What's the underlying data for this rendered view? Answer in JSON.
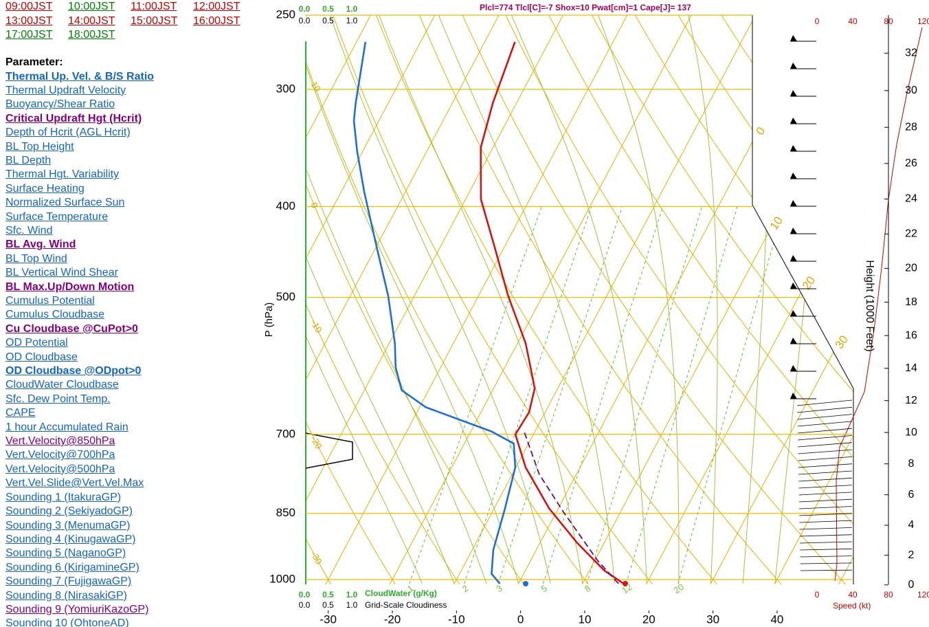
{
  "time_links": [
    {
      "text": "09:00JST",
      "color": "#c00000"
    },
    {
      "text": "10:00JST",
      "color": "#008000"
    },
    {
      "text": "11:00JST",
      "color": "#c00000"
    },
    {
      "text": "12:00JST",
      "color": "#c00000"
    },
    {
      "text": "13:00JST",
      "color": "#c00000"
    },
    {
      "text": "14:00JST",
      "color": "#c00000"
    },
    {
      "text": "15:00JST",
      "color": "#c00000"
    },
    {
      "text": "16:00JST",
      "color": "#c00000"
    },
    {
      "text": "17:00JST",
      "color": "#008000"
    },
    {
      "text": "18:00JST",
      "color": "#008000"
    }
  ],
  "parameter_heading": "Parameter:",
  "parameters": [
    {
      "text": "Thermal Up. Vel. & B/S Ratio",
      "color": "#1565b8",
      "bold": true
    },
    {
      "text": "Thermal Updraft Velocity",
      "color": "#1565b8",
      "bold": false
    },
    {
      "text": "Buoyancy/Shear Ratio",
      "color": "#1565b8",
      "bold": false
    },
    {
      "text": "Critical Updraft Hgt (Hcrit)",
      "color": "#800080",
      "bold": true
    },
    {
      "text": "Depth of Hcrit (AGL Hcrit)",
      "color": "#1565b8",
      "bold": false
    },
    {
      "text": "BL Top Height",
      "color": "#1565b8",
      "bold": false
    },
    {
      "text": "BL Depth",
      "color": "#1565b8",
      "bold": false
    },
    {
      "text": "Thermal Hgt. Variability",
      "color": "#1565b8",
      "bold": false
    },
    {
      "text": "Surface Heating",
      "color": "#1565b8",
      "bold": false
    },
    {
      "text": "Normalized Surface Sun",
      "color": "#1565b8",
      "bold": false
    },
    {
      "text": "Surface Temperature",
      "color": "#1565b8",
      "bold": false
    },
    {
      "text": "Sfc. Wind",
      "color": "#1565b8",
      "bold": false
    },
    {
      "text": "BL Avg. Wind",
      "color": "#800080",
      "bold": true
    },
    {
      "text": "BL Top Wind",
      "color": "#1565b8",
      "bold": false
    },
    {
      "text": "BL Vertical Wind Shear",
      "color": "#1565b8",
      "bold": false
    },
    {
      "text": "BL Max.Up/Down Motion",
      "color": "#800080",
      "bold": true
    },
    {
      "text": "Cumulus Potential",
      "color": "#1565b8",
      "bold": false
    },
    {
      "text": "Cumulus Cloudbase",
      "color": "#1565b8",
      "bold": false
    },
    {
      "text": "Cu Cloudbase @CuPot>0",
      "color": "#800080",
      "bold": true
    },
    {
      "text": "OD Potential",
      "color": "#1565b8",
      "bold": false
    },
    {
      "text": "OD Cloudbase",
      "color": "#1565b8",
      "bold": false
    },
    {
      "text": "OD Cloudbase @ODpot>0",
      "color": "#1565b8",
      "bold": true
    },
    {
      "text": "CloudWater Cloudbase",
      "color": "#1565b8",
      "bold": false
    },
    {
      "text": "Sfc. Dew Point Temp.",
      "color": "#1565b8",
      "bold": false
    },
    {
      "text": "CAPE",
      "color": "#1565b8",
      "bold": false
    },
    {
      "text": "1 hour Accumulated Rain",
      "color": "#1565b8",
      "bold": false
    },
    {
      "text": "Vert.Velocity@850hPa",
      "color": "#800080",
      "bold": false
    },
    {
      "text": "Vert.Velocity@700hPa",
      "color": "#1565b8",
      "bold": false
    },
    {
      "text": "Vert.Velocity@500hPa",
      "color": "#1565b8",
      "bold": false
    },
    {
      "text": "Vert.Vel.Slide@Vert.Vel.Max",
      "color": "#1565b8",
      "bold": false
    },
    {
      "text": "Sounding 1 (ItakuraGP)",
      "color": "#1565b8",
      "bold": false
    },
    {
      "text": "Sounding 2 (SekiyadoGP)",
      "color": "#1565b8",
      "bold": false
    },
    {
      "text": "Sounding 3 (MenumaGP)",
      "color": "#1565b8",
      "bold": false
    },
    {
      "text": "Sounding 4 (KinugawaGP)",
      "color": "#1565b8",
      "bold": false
    },
    {
      "text": "Sounding 5 (NaganoGP)",
      "color": "#1565b8",
      "bold": false
    },
    {
      "text": "Sounding 6 (KirigamineGP)",
      "color": "#1565b8",
      "bold": false
    },
    {
      "text": "Sounding 7 (FujigawaGP)",
      "color": "#1565b8",
      "bold": false
    },
    {
      "text": "Sounding 8 (NirasakiGP)",
      "color": "#1565b8",
      "bold": false
    },
    {
      "text": "Sounding 9 (YomiuriKazoGP)",
      "color": "#800080",
      "bold": false
    },
    {
      "text": "Sounding 10 (OhtoneAD)",
      "color": "#1565b8",
      "bold": false
    }
  ],
  "chart_data": {
    "type": "skew-t",
    "header": "Plcl=774 Tlcl[C]=-7 Shox=10 Pwat[cm]=1 Cape[J]= 137",
    "ylabel": "P (hPa)",
    "ylim": [
      1000,
      250
    ],
    "yticks": [
      250,
      300,
      400,
      500,
      700,
      850,
      1000
    ],
    "xlim": [
      -33.5,
      51.9
    ],
    "xticks": [
      -30,
      -20,
      -10,
      0,
      10,
      20,
      30,
      40
    ],
    "series": [
      {
        "color": "#d01515",
        "style": "solid",
        "pressure": [
          1010,
          978,
          914,
          840,
          759,
          700,
          663,
          625,
          560,
          498,
          442,
          393,
          346,
          310,
          267
        ],
        "values": [
          16.4,
          12.3,
          5.8,
          -1.4,
          -8.5,
          -12.8,
          -12.5,
          -13.6,
          -18.7,
          -25.4,
          -31.5,
          -37.6,
          -41.9,
          -43.7,
          -45.3
        ]
      },
      {
        "color": "#1e6fd0",
        "style": "solid",
        "pressure": [
          1010,
          986,
          930,
          840,
          759,
          716,
          695,
          655,
          628,
          594,
          560,
          498,
          442,
          386,
          349,
          324,
          310,
          267
        ],
        "values": [
          -2.9,
          -5.0,
          -6.7,
          -8.3,
          -10.1,
          -12.3,
          -16.8,
          -29.0,
          -34.2,
          -37.0,
          -39.1,
          -44.1,
          -49.9,
          -56.4,
          -60.9,
          -63.9,
          -65.1,
          -68.6
        ]
      },
      {
        "color": "#6a0a6a",
        "style": "dashed",
        "pressure": [
          1010,
          954,
          847,
          772,
          695
        ],
        "values": [
          15.6,
          10.4,
          1.1,
          -5.8,
          -11.7
        ]
      }
    ],
    "dry_adiabat_labels": [
      10,
      0,
      -10,
      -20,
      -30
    ],
    "isotherm_labels": [
      0,
      10,
      20,
      30
    ],
    "mixing_ratio_labels": [
      1,
      2,
      3,
      5,
      8,
      12,
      20
    ],
    "height_label": "Height (1000 Feet)",
    "height_ticks": [
      0,
      2,
      4,
      6,
      8,
      10,
      12,
      14,
      16,
      18,
      20,
      22,
      24,
      26,
      28,
      30,
      32
    ],
    "speed_label": "Speed (kt)",
    "speed_lim": [
      0,
      120
    ],
    "speed_ticks": [
      0,
      40,
      80,
      120
    ],
    "cloudwater_label": "CloudWater (g/Kg)",
    "cloudiness_label": "Grid-Scale Cloudiness",
    "cloud_lim": [
      0,
      1
    ],
    "cloud_ticks": [
      {
        "value": 0,
        "label": "0.0"
      },
      {
        "value": 0.5,
        "label": "0.5"
      },
      {
        "value": 1,
        "label": "1.0"
      }
    ]
  }
}
